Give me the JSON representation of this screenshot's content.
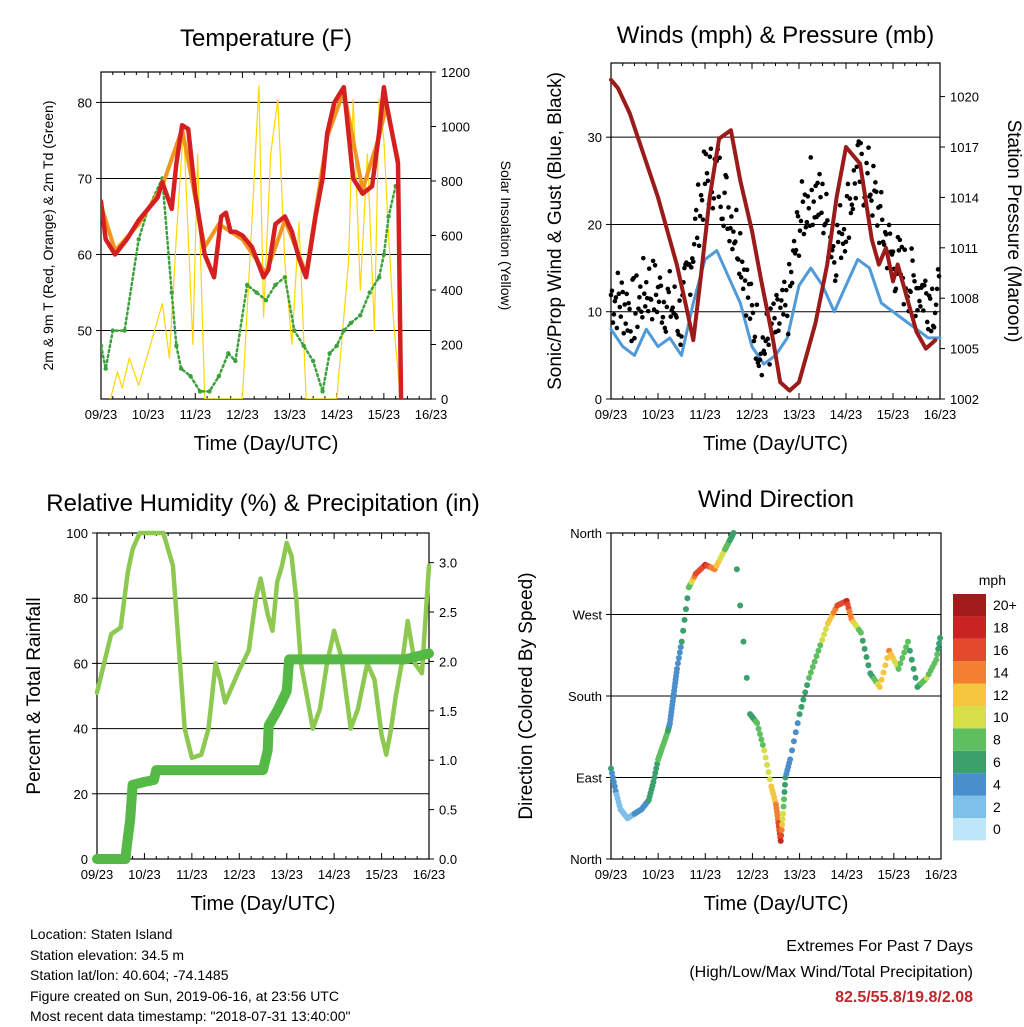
{
  "chart_data": [
    {
      "type": "line",
      "title": "Temperature (F)",
      "xlabel": "Time (Day/UTC)",
      "ylabel": "2m & 9m T (Red, Orange) & 2m Td (Green)",
      "ylabel_right": "Solar Insolation (Yellow)",
      "x_ticks": [
        "09/23",
        "10/23",
        "11/23",
        "12/23",
        "13/23",
        "14/23",
        "15/23",
        "16/23"
      ],
      "y_ticks": [
        "50",
        "60",
        "70",
        "80"
      ],
      "y_right_ticks": [
        "0",
        "200",
        "400",
        "600",
        "800",
        "1000",
        "1200"
      ],
      "ylim": [
        41,
        84
      ],
      "ylim_right": [
        0,
        1200
      ],
      "grid": "horizontal",
      "series": [
        {
          "name": "2m T",
          "color": "#d42020",
          "x": [
            0,
            0.1,
            0.3,
            0.55,
            0.8,
            1.0,
            1.2,
            1.3,
            1.5,
            1.6,
            1.72,
            1.85,
            2.0,
            2.2,
            2.4,
            2.55,
            2.65,
            2.75,
            2.85,
            3.0,
            3.2,
            3.45,
            3.55,
            3.7,
            3.9,
            4.05,
            4.2,
            4.35,
            4.55,
            4.7,
            4.8,
            4.95,
            5.15,
            5.35,
            5.55,
            5.75,
            5.9,
            6.0,
            6.05,
            6.3,
            6.45,
            6.6,
            6.75,
            6.85,
            7.0
          ],
          "y": [
            67,
            62,
            60,
            62,
            64.5,
            66,
            67.5,
            69.5,
            66,
            72,
            77,
            76.5,
            68,
            60,
            57,
            65,
            65.5,
            63,
            63,
            62.5,
            61,
            57,
            58,
            64,
            65,
            63,
            59.5,
            57,
            65,
            70,
            76,
            80,
            82,
            70,
            68,
            69,
            76,
            82,
            80,
            72,
            null,
            null,
            null,
            null,
            null
          ]
        },
        {
          "name": "9m T",
          "color": "#f0961e",
          "x": [
            0,
            0.3,
            0.8,
            1.3,
            1.72,
            2.2,
            2.5,
            3.0,
            3.5,
            3.9,
            4.35,
            4.8,
            5.15,
            5.55,
            5.9,
            6.05,
            6.3
          ],
          "y": [
            66.5,
            60.5,
            64,
            69,
            76.5,
            61,
            64,
            62,
            57.5,
            64.5,
            57.5,
            75.5,
            81.5,
            68.5,
            75.5,
            79.5,
            72.5
          ]
        },
        {
          "name": "2m Td",
          "color": "#3ca03c",
          "x": [
            0,
            0.1,
            0.25,
            0.5,
            0.8,
            1.0,
            1.3,
            1.5,
            1.6,
            1.7,
            1.9,
            2.1,
            2.3,
            2.5,
            2.7,
            2.85,
            3.1,
            3.3,
            3.5,
            3.7,
            3.9,
            4.1,
            4.3,
            4.5,
            4.7,
            4.85,
            5.0,
            5.15,
            5.3,
            5.5,
            5.7,
            5.9,
            6.0,
            6.1,
            6.25
          ],
          "y": [
            48,
            45,
            50,
            50,
            62,
            66,
            70,
            55,
            48,
            45,
            44,
            42,
            42,
            44,
            47,
            46,
            56,
            55,
            54,
            56,
            57,
            50,
            48,
            46,
            42,
            47,
            48,
            50,
            51,
            52,
            55,
            57,
            60,
            65,
            69
          ]
        },
        {
          "name": "Solar Insolation",
          "color": "#ffd700",
          "x": [
            0.2,
            0.35,
            0.45,
            0.6,
            0.8,
            1.3,
            1.45,
            1.6,
            1.75,
            1.85,
            1.95,
            2.05,
            2.2,
            3.0,
            3.2,
            3.35,
            3.45,
            3.6,
            3.75,
            3.9,
            4.05,
            4.2,
            4.35,
            4.6,
            5.0,
            5.25,
            5.35,
            5.5,
            5.65,
            5.8,
            5.9,
            6.0,
            6.1,
            6.2,
            6.35
          ],
          "y": [
            0,
            100,
            40,
            150,
            50,
            350,
            150,
            600,
            1000,
            600,
            200,
            900,
            0,
            0,
            650,
            1150,
            300,
            900,
            1100,
            500,
            200,
            650,
            0,
            0,
            0,
            500,
            1100,
            400,
            900,
            250,
            1100,
            950,
            600,
            300,
            0
          ]
        }
      ]
    },
    {
      "type": "scatter",
      "title": "Winds (mph) & Pressure (mb)",
      "xlabel": "Time (Day/UTC)",
      "ylabel": "Sonic/Prop Wind & Gust (Blue, Black)",
      "ylabel_right": "Station Pressure (Maroon)",
      "x_ticks": [
        "09/23",
        "10/23",
        "11/23",
        "12/23",
        "13/23",
        "14/23",
        "15/23",
        "16/23"
      ],
      "y_ticks": [
        "0",
        "10",
        "20",
        "30"
      ],
      "y_right_ticks": [
        "1002",
        "1005",
        "1008",
        "1011",
        "1014",
        "1017",
        "1020"
      ],
      "ylim": [
        0,
        38.5
      ],
      "ylim_right": [
        1002,
        1022
      ],
      "grid": "horizontal",
      "series": [
        {
          "name": "Wind",
          "color": "#4f9ad7",
          "x": [
            0,
            0.25,
            0.5,
            0.75,
            1.0,
            1.25,
            1.5,
            1.75,
            2.0,
            2.25,
            2.5,
            2.75,
            3.0,
            3.25,
            3.5,
            3.75,
            4.0,
            4.25,
            4.5,
            4.75,
            5.0,
            5.25,
            5.5,
            5.75,
            6.0,
            6.25,
            6.5,
            6.75,
            7.0
          ],
          "y": [
            8,
            6,
            5,
            8,
            6,
            7,
            5,
            11,
            16,
            17,
            14,
            11,
            6,
            4,
            5,
            7,
            13,
            15,
            13,
            10,
            13,
            16,
            15,
            11,
            10,
            9,
            8,
            7,
            7
          ]
        },
        {
          "name": "Gust",
          "color": "#000000",
          "x": [
            0,
            0.25,
            0.5,
            0.75,
            1.0,
            1.25,
            1.5,
            1.75,
            2.0,
            2.25,
            2.5,
            2.75,
            3.0,
            3.25,
            3.5,
            3.75,
            4.0,
            4.25,
            4.5,
            4.75,
            5.0,
            5.25,
            5.5,
            5.75,
            6.0,
            6.25,
            6.5,
            6.75,
            7.0
          ],
          "y": [
            12,
            11,
            10,
            13,
            12,
            11,
            9,
            18,
            25,
            26,
            22,
            18,
            9,
            6,
            8,
            10,
            20,
            24,
            22,
            17,
            21,
            26,
            25,
            20,
            16,
            14,
            13,
            12,
            11
          ]
        },
        {
          "name": "Pressure",
          "color": "#9b1b1b",
          "x": [
            0,
            0.15,
            0.4,
            0.7,
            1.0,
            1.2,
            1.4,
            1.6,
            1.75,
            1.9,
            2.1,
            2.3,
            2.55,
            2.75,
            3.0,
            3.2,
            3.45,
            3.6,
            3.8,
            4.0,
            4.2,
            4.35,
            4.6,
            4.8,
            5.0,
            5.3,
            5.55,
            5.7,
            5.85,
            6.0,
            6.1,
            6.3,
            6.5,
            6.7,
            6.9
          ],
          "y": [
            1021,
            1020.5,
            1019,
            1016.5,
            1014,
            1012,
            1010,
            1007.5,
            1005.5,
            1009,
            1014,
            1017.5,
            1018,
            1015,
            1012,
            1009,
            1005.5,
            1003,
            1002.5,
            1003,
            1005,
            1006.5,
            1010,
            1014,
            1017,
            1016,
            1011.5,
            1010,
            1011,
            1009,
            1010,
            1008,
            1006,
            1005,
            1005.5
          ]
        }
      ]
    },
    {
      "type": "line",
      "title": "Relative Humidity (%) & Precipitation (in)",
      "xlabel": "Time (Day/UTC)",
      "ylabel": "Percent & Total Rainfall",
      "x_ticks": [
        "09/23",
        "10/23",
        "11/23",
        "12/23",
        "13/23",
        "14/23",
        "15/23",
        "16/23"
      ],
      "y_ticks": [
        "0",
        "20",
        "40",
        "60",
        "80",
        "100"
      ],
      "y_right_ticks": [
        "0.0",
        "0.5",
        "1.0",
        "1.5",
        "2.0",
        "2.5",
        "3.0"
      ],
      "ylim": [
        0,
        100
      ],
      "ylim_right": [
        0,
        3.3
      ],
      "grid": "horizontal",
      "series": [
        {
          "name": "Relative Humidity",
          "color": "#8dc850",
          "x": [
            0,
            0.1,
            0.3,
            0.5,
            0.65,
            0.75,
            0.9,
            1.0,
            1.2,
            1.4,
            1.6,
            1.75,
            1.85,
            2.0,
            2.2,
            2.35,
            2.5,
            2.6,
            2.7,
            3.0,
            3.2,
            3.35,
            3.45,
            3.6,
            3.7,
            3.8,
            3.9,
            4.0,
            4.1,
            4.2,
            4.3,
            4.45,
            4.55,
            4.7,
            4.85,
            5.0,
            5.15,
            5.35,
            5.5,
            5.7,
            5.85,
            6.0,
            6.1,
            6.2,
            6.3,
            6.45,
            6.55,
            6.7,
            6.85,
            7.0
          ],
          "y": [
            51,
            57,
            69,
            71,
            88,
            95,
            100,
            100,
            100,
            100,
            90,
            60,
            40,
            31,
            32,
            40,
            60,
            55,
            48,
            58,
            64,
            80,
            86,
            75,
            70,
            85,
            90,
            97,
            93,
            80,
            60,
            48,
            40,
            46,
            60,
            70,
            62,
            40,
            46,
            60,
            55,
            38,
            32,
            40,
            50,
            62,
            73,
            60,
            57,
            90
          ]
        },
        {
          "name": "Total Rainfall",
          "color": "#55b945",
          "x": [
            0,
            0.6,
            0.62,
            0.7,
            0.75,
            1.0,
            1.2,
            1.25,
            1.5,
            2.0,
            2.5,
            3.0,
            3.5,
            3.6,
            3.62,
            3.8,
            3.85,
            4.0,
            4.05,
            4.5,
            5.0,
            5.5,
            6.0,
            6.5,
            7.0
          ],
          "y": [
            0,
            0,
            0.1,
            0.4,
            0.75,
            0.78,
            0.8,
            0.9,
            0.9,
            0.9,
            0.9,
            0.9,
            0.9,
            1.1,
            1.35,
            1.5,
            1.55,
            1.7,
            2.02,
            2.02,
            2.02,
            2.02,
            2.02,
            2.02,
            2.08
          ]
        }
      ]
    },
    {
      "type": "scatter",
      "title": "Wind Direction",
      "xlabel": "Time (Day/UTC)",
      "ylabel": "Direction (Colored By Speed)",
      "x_ticks": [
        "09/23",
        "10/23",
        "11/23",
        "12/23",
        "13/23",
        "14/23",
        "15/23",
        "16/23"
      ],
      "y_ticks": [
        "North",
        "East",
        "South",
        "West",
        "North"
      ],
      "ylim": [
        0,
        360
      ],
      "grid": "horizontal",
      "colorbar": {
        "title": "mph",
        "labels": [
          "0",
          "2",
          "4",
          "6",
          "8",
          "10",
          "12",
          "14",
          "16",
          "18",
          "20+"
        ],
        "colors": [
          "#bde6f8",
          "#7ec0ea",
          "#4a8fcb",
          "#3aa06c",
          "#5fbf60",
          "#d6de4a",
          "#f7c640",
          "#f28030",
          "#e34a2c",
          "#c92323",
          "#a31a1a"
        ]
      },
      "series": [
        {
          "name": "Direction",
          "x": [
            0,
            0.1,
            0.2,
            0.35,
            0.5,
            0.65,
            0.8,
            0.9,
            1.0,
            1.1,
            1.2,
            1.25,
            1.3,
            1.35,
            1.4,
            1.5,
            1.65,
            1.8,
            2.0,
            2.2,
            2.4,
            2.5,
            2.6,
            2.95,
            3.1,
            3.25,
            3.4,
            3.5,
            3.55,
            3.6,
            3.65,
            3.7,
            3.8,
            4.0,
            4.2,
            4.4,
            4.6,
            4.8,
            5.0,
            5.1,
            5.3,
            5.5,
            5.7,
            5.9,
            6.1,
            6.3,
            6.5,
            6.7,
            6.9,
            7.0
          ],
          "y": [
            100,
            75,
            55,
            45,
            50,
            55,
            65,
            85,
            110,
            125,
            140,
            150,
            170,
            190,
            210,
            240,
            300,
            315,
            325,
            320,
            340,
            350,
            360,
            160,
            150,
            120,
            80,
            60,
            40,
            20,
            50,
            90,
            110,
            160,
            200,
            230,
            260,
            280,
            285,
            265,
            250,
            205,
            190,
            230,
            210,
            240,
            190,
            200,
            220,
            250
          ],
          "speed": [
            6,
            4,
            3,
            2,
            4,
            5,
            6,
            7,
            8,
            9,
            8,
            5,
            4,
            4,
            5,
            6,
            8,
            16,
            18,
            14,
            10,
            8,
            6,
            6,
            9,
            10,
            12,
            14,
            16,
            18,
            10,
            6,
            5,
            6,
            8,
            9,
            12,
            16,
            18,
            14,
            8,
            6,
            12,
            14,
            9,
            8,
            7,
            10,
            9,
            6
          ]
        }
      ]
    }
  ],
  "info": {
    "location": "Location: Staten Island",
    "elevation": "Station elevation: 34.5 m",
    "latlon": "Station lat/lon: 40.604; -74.1485",
    "created": "Figure created on Sun, 2019-06-16, at 23:56 UTC",
    "recent": "Most recent data timestamp: \"2018-07-31 13:40:00\""
  },
  "extremes": {
    "title": "Extremes For Past 7 Days",
    "subtitle": "(High/Low/Max Wind/Total Precipitation)",
    "values": "82.5/55.8/19.8/2.08"
  }
}
